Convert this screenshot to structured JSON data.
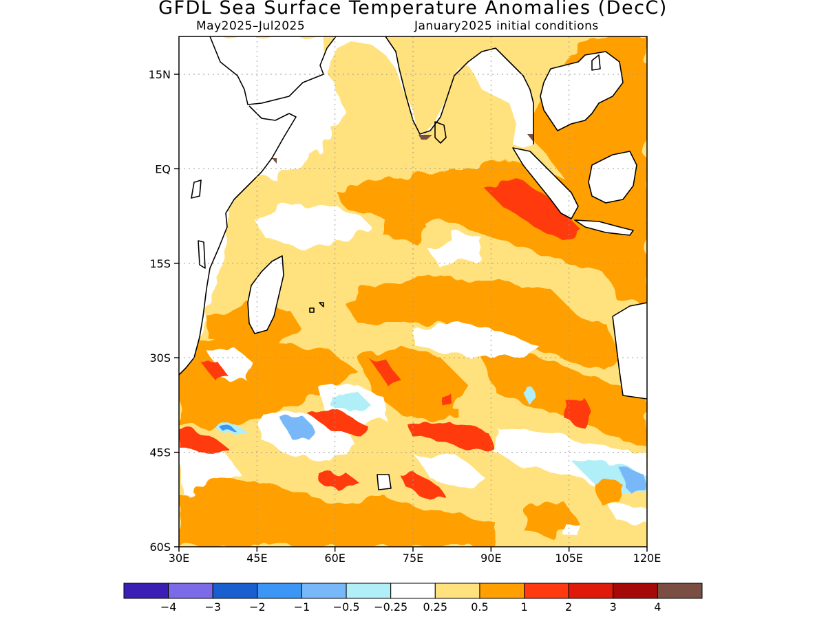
{
  "title": "GFDL Sea Surface Temperature Anomalies (DecC)",
  "subtitle_left": "May2025–Jul2025",
  "subtitle_right": "January2025 initial conditions",
  "map": {
    "lon_range": [
      30,
      120
    ],
    "lat_range": [
      -60,
      21
    ],
    "lat_ticks": [
      {
        "value": 15,
        "label": "15N"
      },
      {
        "value": 0,
        "label": "EQ"
      },
      {
        "value": -15,
        "label": "15S"
      },
      {
        "value": -30,
        "label": "30S"
      },
      {
        "value": -45,
        "label": "45S"
      },
      {
        "value": -60,
        "label": "60S"
      }
    ],
    "lon_ticks": [
      {
        "value": 30,
        "label": "30E"
      },
      {
        "value": 45,
        "label": "45E"
      },
      {
        "value": 60,
        "label": "60E"
      },
      {
        "value": 75,
        "label": "75E"
      },
      {
        "value": 90,
        "label": "90E"
      },
      {
        "value": 105,
        "label": "105E"
      },
      {
        "value": 120,
        "label": "120E"
      }
    ],
    "gridlines": true
  },
  "colorbar": {
    "colors": [
      "#3b1fb4",
      "#7d6ae8",
      "#1a5fd0",
      "#3c96f5",
      "#78b8f8",
      "#b0eef8",
      "#ffffff",
      "#ffe27e",
      "#ffa000",
      "#ff3a10",
      "#e01a0a",
      "#a50a08",
      "#7a4e42"
    ],
    "labels": [
      "−4",
      "−3",
      "−2",
      "−1",
      "−0.5",
      "−0.25",
      "0.25",
      "0.5",
      "1",
      "2",
      "3",
      "4"
    ]
  }
}
